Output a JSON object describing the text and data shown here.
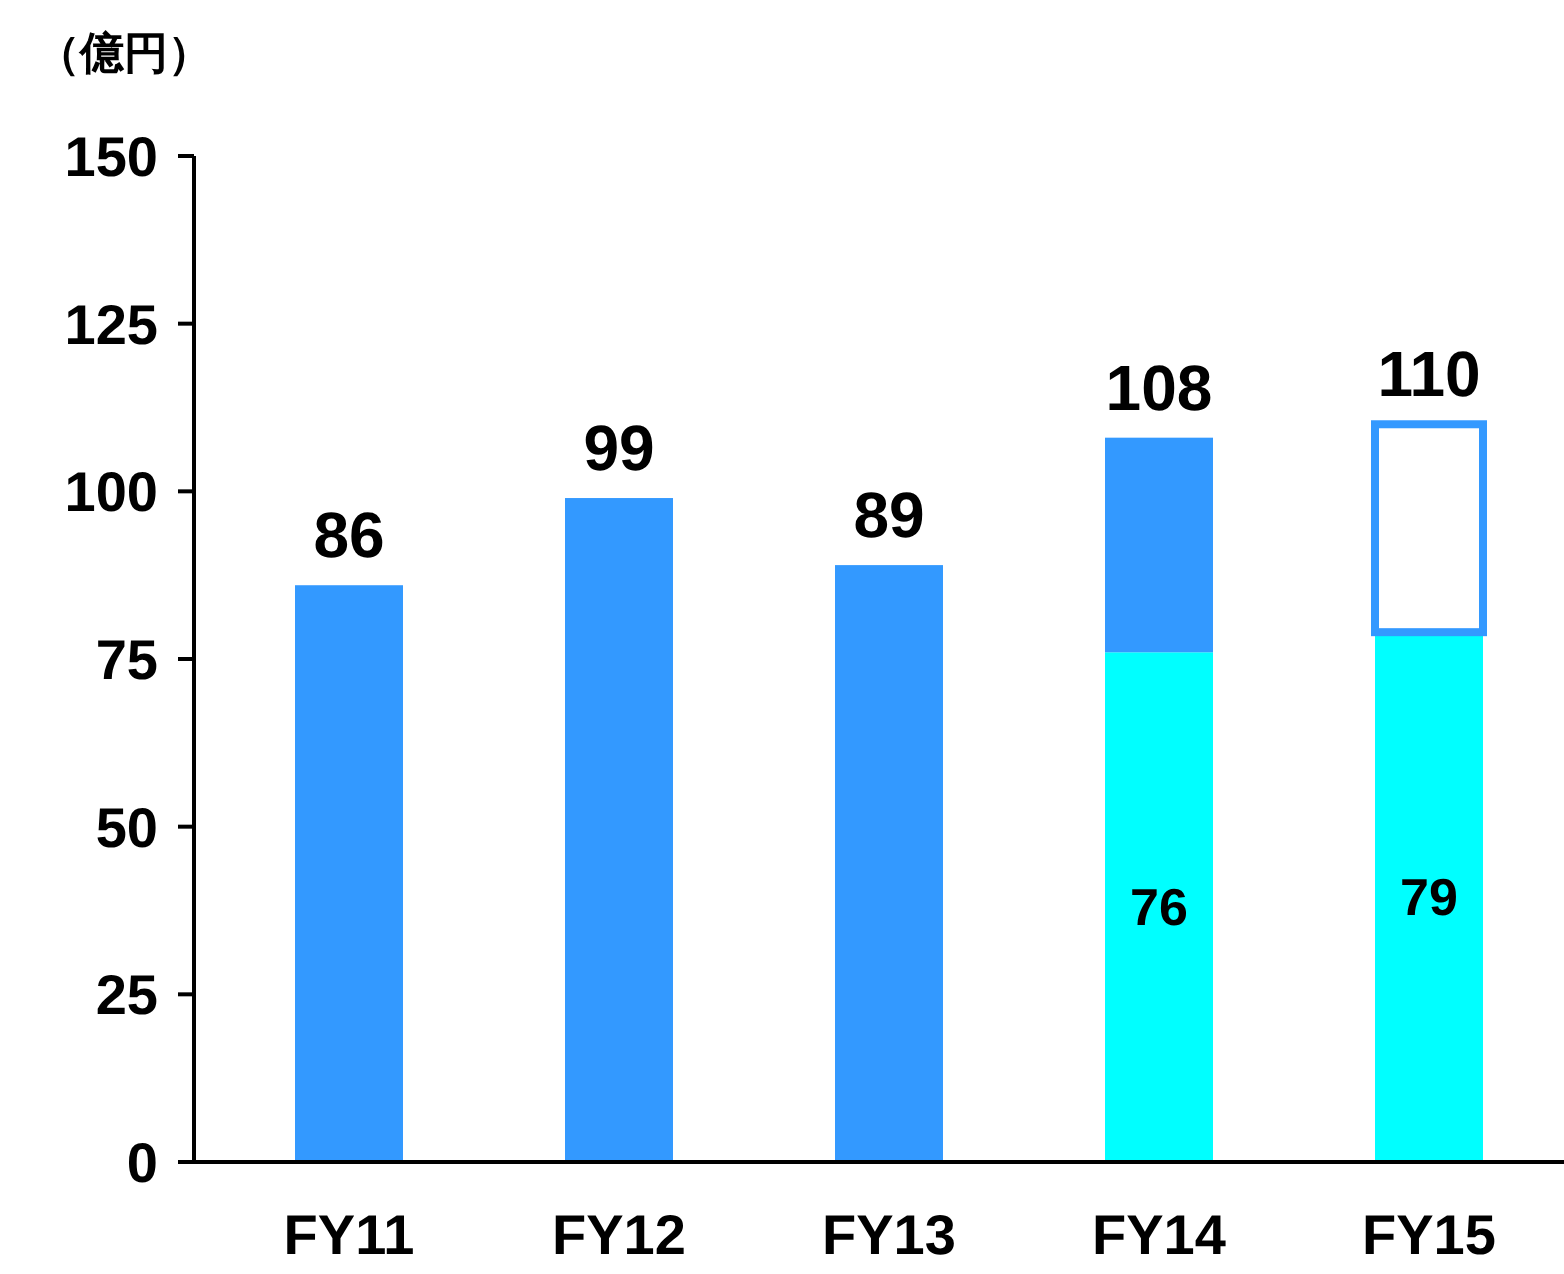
{
  "chart_data": {
    "type": "bar",
    "stacked": true,
    "ylabel": "（億円）",
    "categories": [
      "FY11",
      "FY12",
      "FY13",
      "FY14",
      "FY15"
    ],
    "series": [
      {
        "color": "#00ffff",
        "values": [
          null,
          null,
          null,
          76,
          79
        ],
        "value_labels": [
          null,
          null,
          null,
          "76",
          "79"
        ]
      },
      {
        "color": "#3399ff",
        "values": [
          86,
          99,
          89,
          32,
          null
        ]
      },
      {
        "color": "#ffffff",
        "values": [
          null,
          null,
          null,
          null,
          31
        ]
      }
    ],
    "totals": [
      "86",
      "99",
      "89",
      "108",
      "110"
    ],
    "ylim": [
      0,
      150
    ],
    "yticks": [
      0,
      25,
      50,
      75,
      100,
      125,
      150
    ],
    "grid": false
  }
}
